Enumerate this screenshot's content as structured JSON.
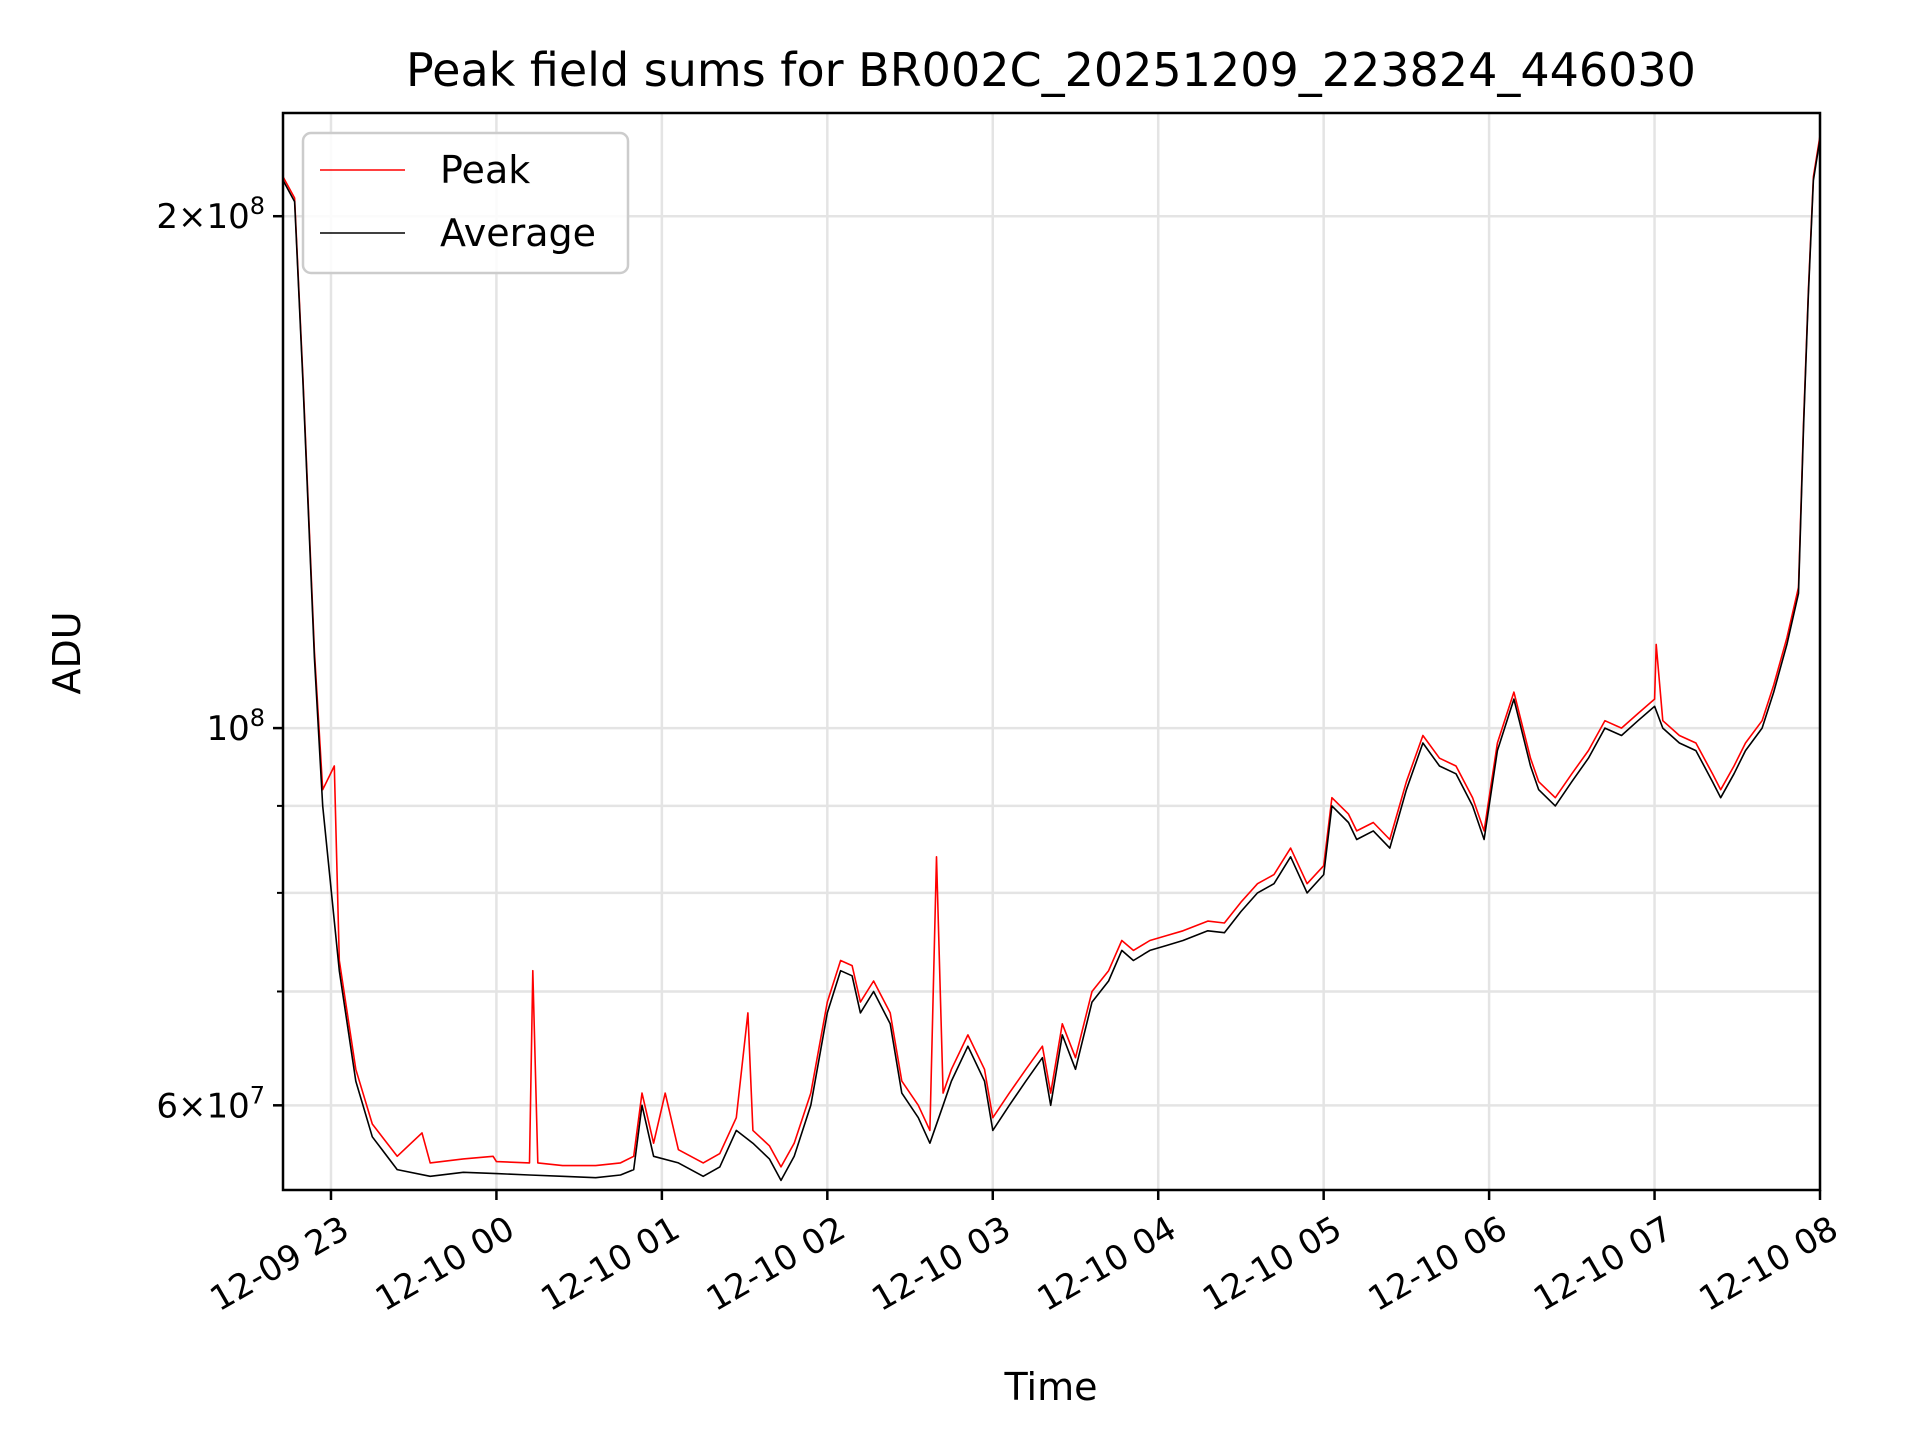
{
  "chart_data": {
    "type": "line",
    "title": "Peak field sums for BR002C_20251209_223824_446030",
    "xlabel": "Time",
    "ylabel": "ADU",
    "yscale": "log",
    "ylim": [
      53500000,
      230000000
    ],
    "xlim_hours": [
      -0.29,
      9.0
    ],
    "grid": true,
    "legend_location": "top-left",
    "colors": {
      "Peak": "#ff0000",
      "Average": "#000000"
    },
    "x_ticks": [
      {
        "h": 0,
        "label": "12-09 23"
      },
      {
        "h": 1,
        "label": "12-10 00"
      },
      {
        "h": 2,
        "label": "12-10 01"
      },
      {
        "h": 3,
        "label": "12-10 02"
      },
      {
        "h": 4,
        "label": "12-10 03"
      },
      {
        "h": 5,
        "label": "12-10 04"
      },
      {
        "h": 6,
        "label": "12-10 05"
      },
      {
        "h": 7,
        "label": "12-10 06"
      },
      {
        "h": 8,
        "label": "12-10 07"
      },
      {
        "h": 9,
        "label": "12-10 08"
      }
    ],
    "y_major_ticks": [
      {
        "v": 200000000,
        "mant": "2",
        "exp": "8"
      },
      {
        "v": 100000000,
        "mant": "",
        "exp": "8"
      },
      {
        "v": 60000000,
        "mant": "6",
        "exp": "7"
      }
    ],
    "y_minor_ticks": [
      70000000,
      80000000,
      90000000
    ],
    "series": [
      {
        "name": "Average",
        "points": [
          [
            -0.29,
            210000000
          ],
          [
            -0.22,
            204000000
          ],
          [
            -0.17,
            160000000
          ],
          [
            -0.1,
            110000000
          ],
          [
            -0.05,
            90000000
          ],
          [
            0.05,
            72000000
          ],
          [
            0.15,
            62000000
          ],
          [
            0.25,
            57500000
          ],
          [
            0.4,
            55000000
          ],
          [
            0.6,
            54500000
          ],
          [
            0.8,
            54800000
          ],
          [
            1.0,
            54700000
          ],
          [
            1.2,
            54600000
          ],
          [
            1.4,
            54500000
          ],
          [
            1.6,
            54400000
          ],
          [
            1.75,
            54600000
          ],
          [
            1.83,
            55000000
          ],
          [
            1.88,
            60000000
          ],
          [
            1.95,
            56000000
          ],
          [
            2.1,
            55500000
          ],
          [
            2.25,
            54500000
          ],
          [
            2.35,
            55200000
          ],
          [
            2.45,
            58000000
          ],
          [
            2.55,
            57000000
          ],
          [
            2.65,
            55800000
          ],
          [
            2.72,
            54200000
          ],
          [
            2.8,
            56000000
          ],
          [
            2.9,
            60000000
          ],
          [
            3.0,
            68000000
          ],
          [
            3.08,
            72000000
          ],
          [
            3.15,
            71500000
          ],
          [
            3.2,
            68000000
          ],
          [
            3.28,
            70000000
          ],
          [
            3.38,
            67000000
          ],
          [
            3.45,
            61000000
          ],
          [
            3.55,
            59000000
          ],
          [
            3.62,
            57000000
          ],
          [
            3.7,
            60000000
          ],
          [
            3.75,
            62000000
          ],
          [
            3.85,
            65000000
          ],
          [
            3.95,
            62000000
          ],
          [
            4.0,
            58000000
          ],
          [
            4.1,
            60000000
          ],
          [
            4.2,
            62000000
          ],
          [
            4.3,
            64000000
          ],
          [
            4.35,
            60000000
          ],
          [
            4.42,
            66000000
          ],
          [
            4.5,
            63000000
          ],
          [
            4.6,
            69000000
          ],
          [
            4.7,
            71000000
          ],
          [
            4.78,
            74000000
          ],
          [
            4.85,
            73000000
          ],
          [
            4.95,
            74000000
          ],
          [
            5.05,
            74500000
          ],
          [
            5.15,
            75000000
          ],
          [
            5.3,
            76000000
          ],
          [
            5.4,
            75800000
          ],
          [
            5.5,
            78000000
          ],
          [
            5.6,
            80000000
          ],
          [
            5.7,
            81000000
          ],
          [
            5.8,
            84000000
          ],
          [
            5.9,
            80000000
          ],
          [
            6.0,
            82000000
          ],
          [
            6.05,
            90000000
          ],
          [
            6.15,
            88000000
          ],
          [
            6.2,
            86000000
          ],
          [
            6.3,
            87000000
          ],
          [
            6.4,
            85000000
          ],
          [
            6.5,
            92000000
          ],
          [
            6.6,
            98000000
          ],
          [
            6.7,
            95000000
          ],
          [
            6.8,
            94000000
          ],
          [
            6.9,
            90000000
          ],
          [
            6.97,
            86000000
          ],
          [
            7.05,
            97000000
          ],
          [
            7.15,
            104000000
          ],
          [
            7.25,
            95000000
          ],
          [
            7.3,
            92000000
          ],
          [
            7.4,
            90000000
          ],
          [
            7.5,
            93000000
          ],
          [
            7.6,
            96000000
          ],
          [
            7.7,
            100000000
          ],
          [
            7.8,
            99000000
          ],
          [
            7.9,
            101000000
          ],
          [
            8.0,
            103000000
          ],
          [
            8.05,
            100000000
          ],
          [
            8.15,
            98000000
          ],
          [
            8.25,
            97000000
          ],
          [
            8.35,
            93000000
          ],
          [
            8.4,
            91000000
          ],
          [
            8.48,
            94000000
          ],
          [
            8.55,
            97000000
          ],
          [
            8.65,
            100000000
          ],
          [
            8.72,
            105000000
          ],
          [
            8.8,
            112000000
          ],
          [
            8.87,
            120000000
          ],
          [
            8.9,
            150000000
          ],
          [
            8.93,
            180000000
          ],
          [
            8.96,
            210000000
          ],
          [
            9.0,
            222000000
          ]
        ]
      },
      {
        "name": "Peak",
        "points": [
          [
            -0.29,
            211000000
          ],
          [
            -0.22,
            205000000
          ],
          [
            -0.17,
            161000000
          ],
          [
            -0.1,
            111000000
          ],
          [
            -0.05,
            92000000
          ],
          [
            0.02,
            95000000
          ],
          [
            0.05,
            73000000
          ],
          [
            0.15,
            63000000
          ],
          [
            0.25,
            58500000
          ],
          [
            0.4,
            56000000
          ],
          [
            0.55,
            57800000
          ],
          [
            0.6,
            55500000
          ],
          [
            0.8,
            55800000
          ],
          [
            0.98,
            56000000
          ],
          [
            1.0,
            55600000
          ],
          [
            1.2,
            55500000
          ],
          [
            1.22,
            72000000
          ],
          [
            1.25,
            55500000
          ],
          [
            1.4,
            55300000
          ],
          [
            1.6,
            55300000
          ],
          [
            1.75,
            55500000
          ],
          [
            1.83,
            56000000
          ],
          [
            1.88,
            61000000
          ],
          [
            1.95,
            57000000
          ],
          [
            2.02,
            61000000
          ],
          [
            2.1,
            56500000
          ],
          [
            2.25,
            55500000
          ],
          [
            2.35,
            56200000
          ],
          [
            2.45,
            59000000
          ],
          [
            2.52,
            68000000
          ],
          [
            2.55,
            58000000
          ],
          [
            2.65,
            56800000
          ],
          [
            2.72,
            55200000
          ],
          [
            2.8,
            57000000
          ],
          [
            2.9,
            61000000
          ],
          [
            3.0,
            69000000
          ],
          [
            3.08,
            73000000
          ],
          [
            3.15,
            72500000
          ],
          [
            3.2,
            69000000
          ],
          [
            3.28,
            71000000
          ],
          [
            3.38,
            68000000
          ],
          [
            3.45,
            62000000
          ],
          [
            3.55,
            60000000
          ],
          [
            3.62,
            58000000
          ],
          [
            3.66,
            84000000
          ],
          [
            3.7,
            61000000
          ],
          [
            3.75,
            63000000
          ],
          [
            3.85,
            66000000
          ],
          [
            3.95,
            63000000
          ],
          [
            4.0,
            59000000
          ],
          [
            4.1,
            61000000
          ],
          [
            4.2,
            63000000
          ],
          [
            4.3,
            65000000
          ],
          [
            4.35,
            61000000
          ],
          [
            4.42,
            67000000
          ],
          [
            4.5,
            64000000
          ],
          [
            4.6,
            70000000
          ],
          [
            4.7,
            72000000
          ],
          [
            4.78,
            75000000
          ],
          [
            4.85,
            74000000
          ],
          [
            4.95,
            75000000
          ],
          [
            5.05,
            75500000
          ],
          [
            5.15,
            76000000
          ],
          [
            5.3,
            77000000
          ],
          [
            5.4,
            76800000
          ],
          [
            5.5,
            79000000
          ],
          [
            5.6,
            81000000
          ],
          [
            5.7,
            82000000
          ],
          [
            5.8,
            85000000
          ],
          [
            5.9,
            81000000
          ],
          [
            6.0,
            83000000
          ],
          [
            6.05,
            91000000
          ],
          [
            6.15,
            89000000
          ],
          [
            6.2,
            87000000
          ],
          [
            6.3,
            88000000
          ],
          [
            6.4,
            86000000
          ],
          [
            6.5,
            93000000
          ],
          [
            6.6,
            99000000
          ],
          [
            6.7,
            96000000
          ],
          [
            6.8,
            95000000
          ],
          [
            6.9,
            91000000
          ],
          [
            6.97,
            87000000
          ],
          [
            7.05,
            98000000
          ],
          [
            7.15,
            105000000
          ],
          [
            7.25,
            96000000
          ],
          [
            7.3,
            93000000
          ],
          [
            7.4,
            91000000
          ],
          [
            7.5,
            94000000
          ],
          [
            7.6,
            97000000
          ],
          [
            7.7,
            101000000
          ],
          [
            7.8,
            100000000
          ],
          [
            7.9,
            102000000
          ],
          [
            8.0,
            104000000
          ],
          [
            8.01,
            112000000
          ],
          [
            8.05,
            101000000
          ],
          [
            8.15,
            99000000
          ],
          [
            8.25,
            98000000
          ],
          [
            8.35,
            94000000
          ],
          [
            8.4,
            92000000
          ],
          [
            8.48,
            95000000
          ],
          [
            8.55,
            98000000
          ],
          [
            8.65,
            101000000
          ],
          [
            8.72,
            106000000
          ],
          [
            8.8,
            113000000
          ],
          [
            8.87,
            121000000
          ],
          [
            8.9,
            151000000
          ],
          [
            8.93,
            181000000
          ],
          [
            8.96,
            211000000
          ],
          [
            9.0,
            223000000
          ]
        ]
      }
    ]
  }
}
